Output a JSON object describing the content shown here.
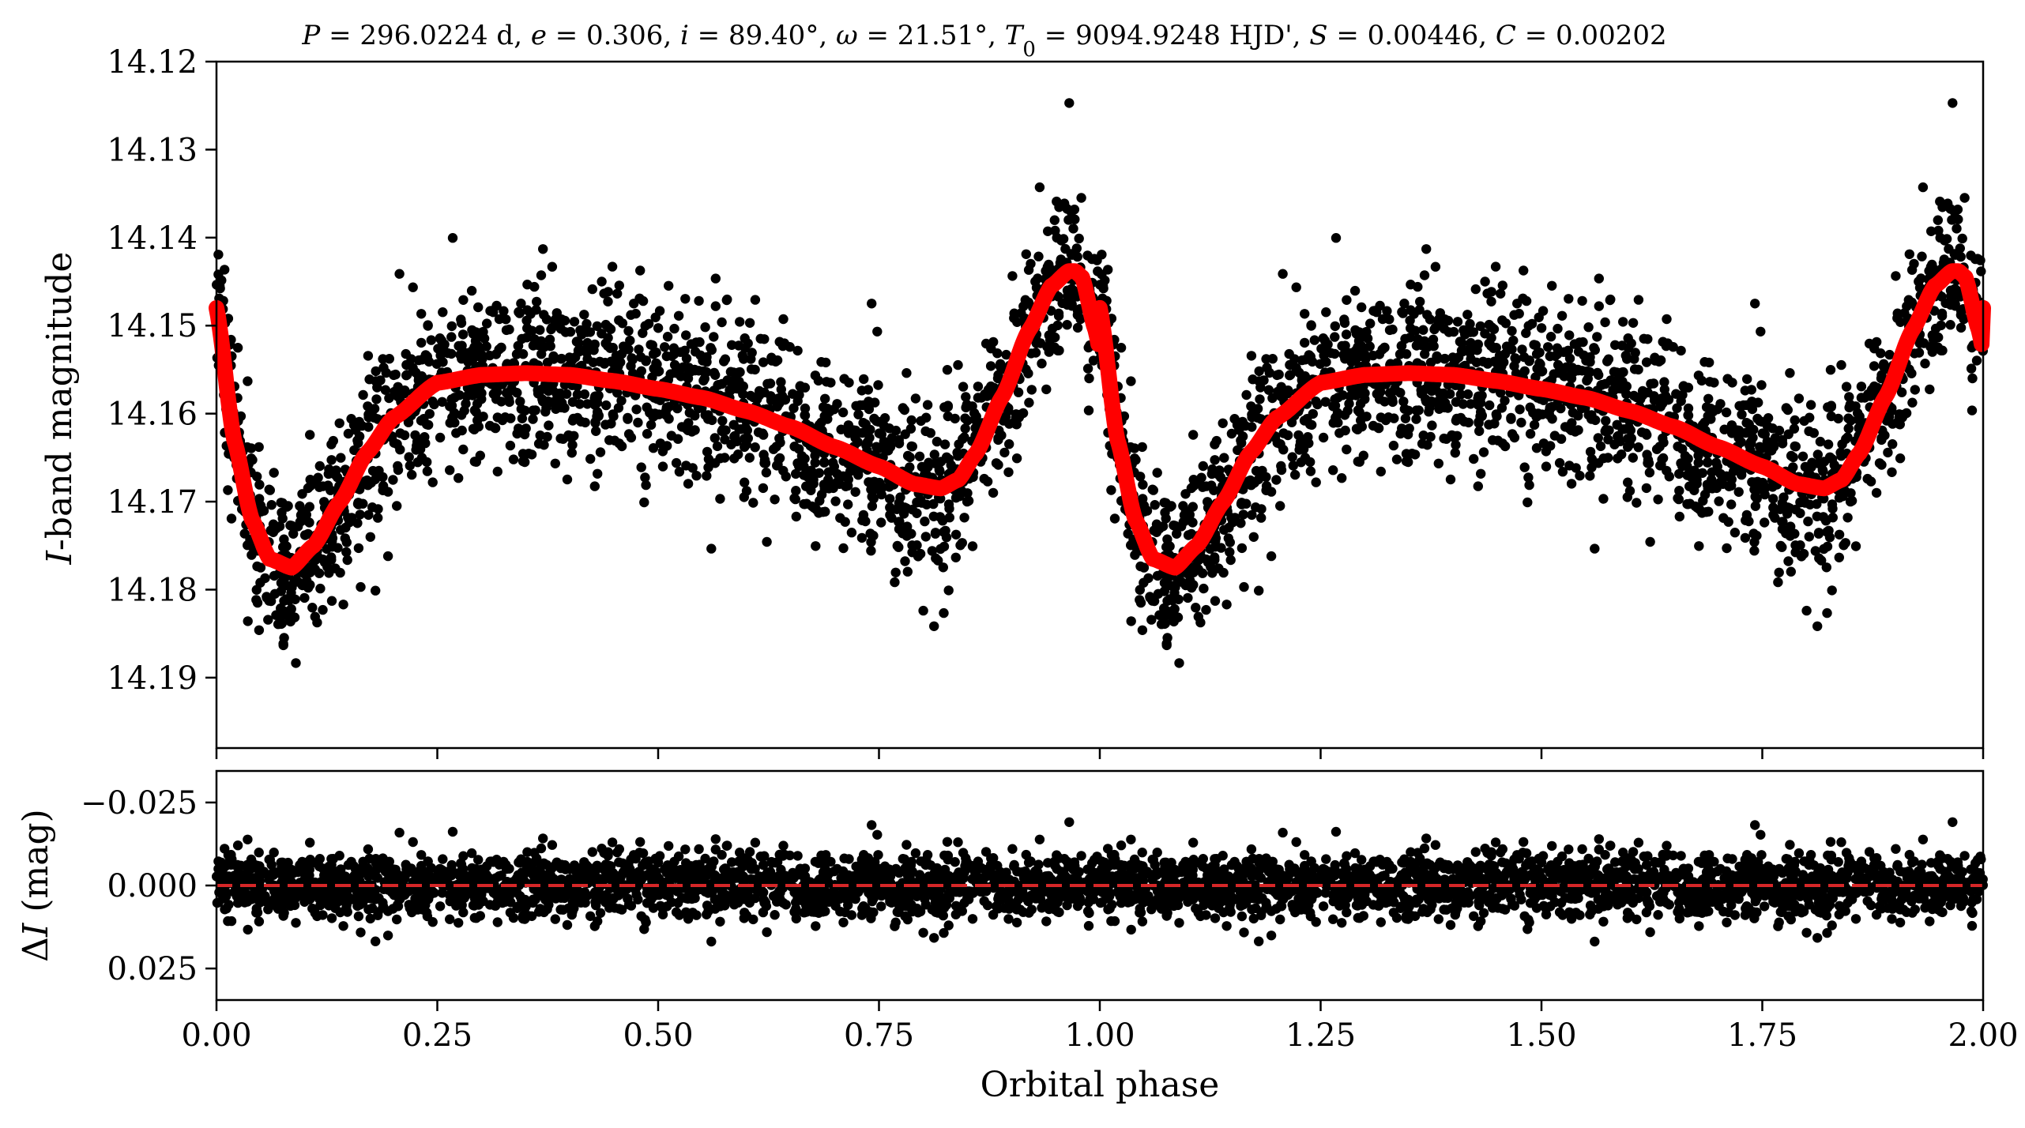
{
  "chart_data": [
    {
      "type": "scatter",
      "panel": "light-curve",
      "title": "P = 296.0224 d, e = 0.306, i = 89.40°, ω = 21.51°, T₀ = 9094.9248 HJD', S = 0.00446, C = 0.00202",
      "title_runs": [
        {
          "t": "P",
          "italic": true
        },
        {
          "t": " = 296.0224 d, ",
          "italic": false
        },
        {
          "t": "e",
          "italic": true
        },
        {
          "t": " = 0.306, ",
          "italic": false
        },
        {
          "t": "i",
          "italic": true
        },
        {
          "t": " = 89.40°, ",
          "italic": false
        },
        {
          "t": "ω",
          "italic": true
        },
        {
          "t": " = 21.51°, ",
          "italic": false
        },
        {
          "t": "T",
          "italic": true
        },
        {
          "t": "0",
          "italic": false,
          "sub": true
        },
        {
          "t": " = 9094.9248 HJD', ",
          "italic": false
        },
        {
          "t": "S",
          "italic": true
        },
        {
          "t": " = 0.00446, ",
          "italic": false
        },
        {
          "t": "C",
          "italic": true
        },
        {
          "t": " = 0.00202",
          "italic": false
        }
      ],
      "ylabel_runs": [
        {
          "t": "I",
          "italic": true
        },
        {
          "t": "-band magnitude",
          "italic": false
        }
      ],
      "xlim": [
        0.0,
        2.0
      ],
      "ylim": [
        14.198,
        14.12
      ],
      "y_inverted": true,
      "yticks": [
        14.12,
        14.13,
        14.14,
        14.15,
        14.16,
        14.17,
        14.18,
        14.19
      ],
      "ytick_labels": [
        "14.12",
        "14.13",
        "14.14",
        "14.15",
        "14.16",
        "14.17",
        "14.18",
        "14.19"
      ],
      "xticks": [
        0.0,
        0.25,
        0.5,
        0.75,
        1.0,
        1.25,
        1.5,
        1.75,
        2.0
      ],
      "grid": false,
      "series": [
        {
          "kind": "observations",
          "color": "#000000",
          "description_points_sampled": true,
          "model_ref": "fit"
        },
        {
          "kind": "model-fit",
          "color": "#ff0000",
          "x": [
            0.0,
            0.02,
            0.04,
            0.06,
            0.085,
            0.11,
            0.14,
            0.17,
            0.2,
            0.25,
            0.3,
            0.35,
            0.4,
            0.45,
            0.5,
            0.55,
            0.6,
            0.65,
            0.7,
            0.75,
            0.79,
            0.82,
            0.84,
            0.86,
            0.89,
            0.92,
            0.945,
            0.965,
            0.972,
            0.98,
            0.995,
            1.01,
            1.03,
            1.06,
            1.085
          ],
          "y": [
            14.148,
            14.163,
            14.172,
            14.1765,
            14.1775,
            14.175,
            14.17,
            14.1645,
            14.1605,
            14.1565,
            14.1556,
            14.1554,
            14.1556,
            14.1563,
            14.1572,
            14.1582,
            14.1597,
            14.1615,
            14.1638,
            14.166,
            14.168,
            14.1685,
            14.1675,
            14.1645,
            14.158,
            14.1505,
            14.1455,
            14.1438,
            14.1438,
            14.1445,
            14.1505,
            14.159,
            14.1685,
            14.176,
            14.1775
          ]
        }
      ]
    },
    {
      "type": "scatter",
      "panel": "residuals",
      "ylabel_runs": [
        {
          "t": "Δ",
          "italic": false
        },
        {
          "t": "I",
          "italic": true
        },
        {
          "t": " (mag)",
          "italic": false
        }
      ],
      "xlabel": "Orbital phase",
      "xlim": [
        0.0,
        2.0
      ],
      "ylim": [
        0.0345,
        -0.0345
      ],
      "y_inverted": true,
      "yticks": [
        -0.025,
        0.0,
        0.025
      ],
      "ytick_labels": [
        "−0.025",
        "0.000",
        "0.025"
      ],
      "xticks": [
        0.0,
        0.25,
        0.5,
        0.75,
        1.0,
        1.25,
        1.5,
        1.75,
        2.0
      ],
      "xtick_labels": [
        "0.00",
        "0.25",
        "0.50",
        "0.75",
        "1.00",
        "1.25",
        "1.50",
        "1.75",
        "2.00"
      ],
      "zero_line": {
        "y": 0.0,
        "color": "#d62728",
        "style": "dashed"
      },
      "grid": false,
      "series": [
        {
          "kind": "residual-observations",
          "color": "#000000"
        }
      ]
    }
  ]
}
